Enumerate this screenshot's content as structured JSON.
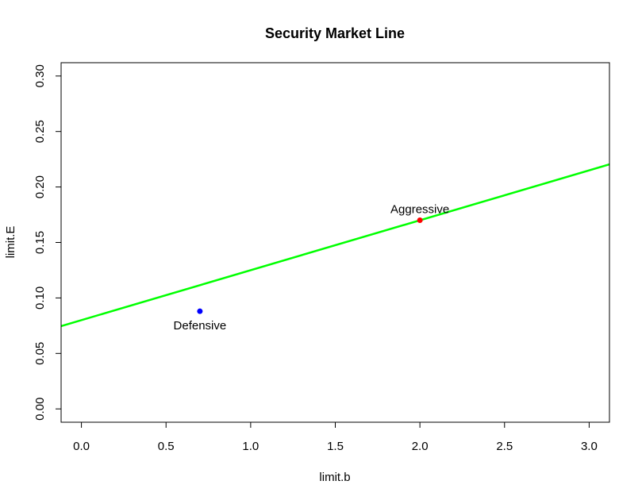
{
  "chart_data": {
    "type": "scatter",
    "title": "Security Market Line",
    "xlabel": "limit.b",
    "ylabel": "limit.E",
    "xlim": [
      -0.12,
      3.12
    ],
    "ylim": [
      -0.012,
      0.312
    ],
    "x_ticks": [
      "0.0",
      "0.5",
      "1.0",
      "1.5",
      "2.0",
      "2.5",
      "3.0"
    ],
    "y_ticks": [
      "0.00",
      "0.05",
      "0.10",
      "0.15",
      "0.20",
      "0.25",
      "0.30"
    ],
    "grid": false,
    "line": {
      "intercept": 0.08,
      "slope": 0.045,
      "color": "#00ff00"
    },
    "points": [
      {
        "label": "Defensive",
        "x": 0.7,
        "y": 0.088,
        "color": "#0000ff",
        "label_position": "below"
      },
      {
        "label": "Aggressive",
        "x": 2.0,
        "y": 0.17,
        "color": "#ff0000",
        "label_position": "above"
      }
    ]
  }
}
